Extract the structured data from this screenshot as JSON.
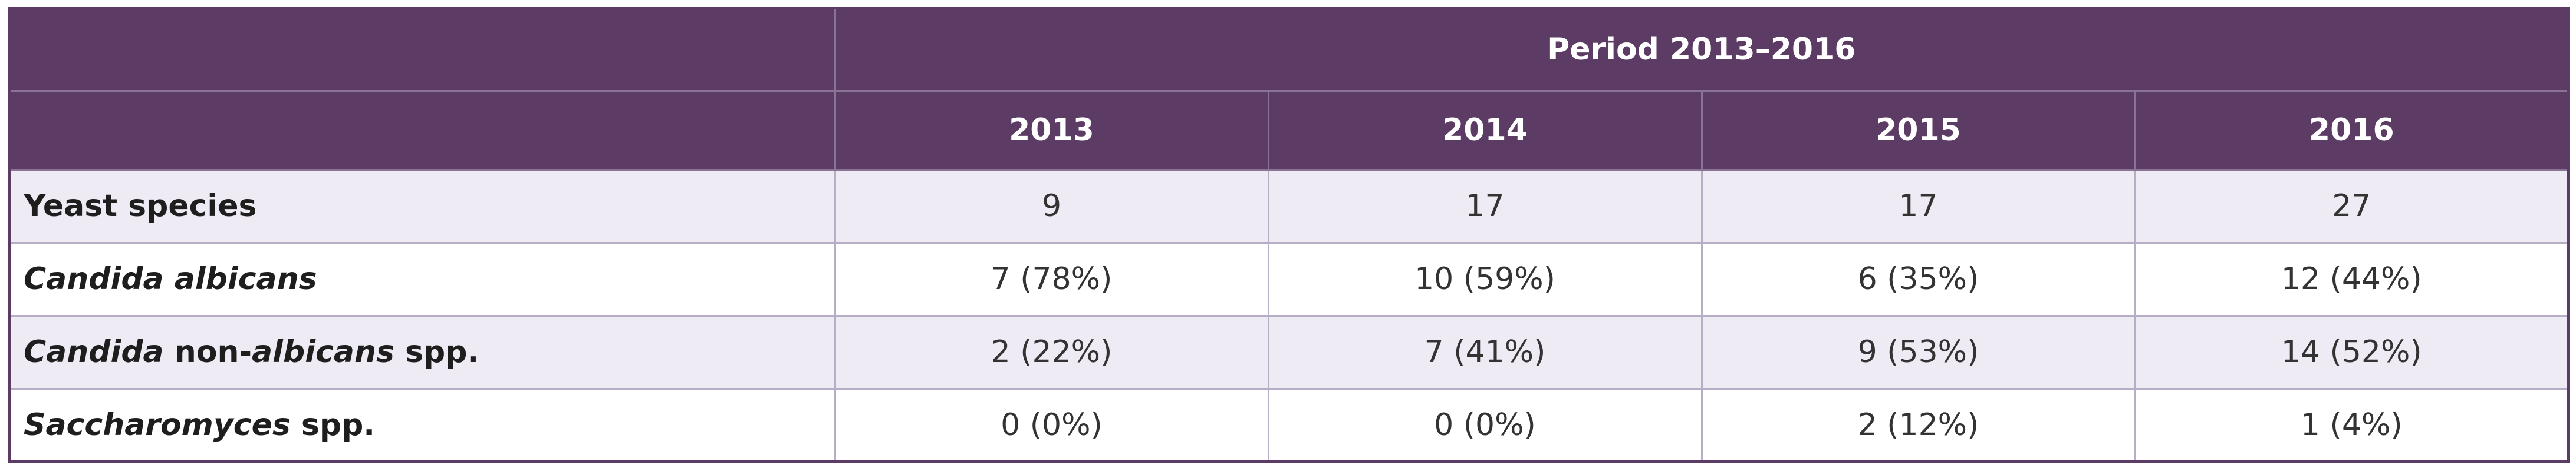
{
  "table": {
    "period_header": "Period 2013–2016",
    "years": [
      "2013",
      "2014",
      "2015",
      "2016"
    ],
    "rows": [
      {
        "label_parts": [
          {
            "text": "Yeast species",
            "italic": false
          }
        ],
        "values": [
          "9",
          "17",
          "17",
          "27"
        ]
      },
      {
        "label_parts": [
          {
            "text": "Candida albicans",
            "italic": true
          }
        ],
        "values": [
          "7 (78%)",
          "10 (59%)",
          "6 (35%)",
          "12 (44%)"
        ]
      },
      {
        "label_parts": [
          {
            "text": "Candida",
            "italic": true
          },
          {
            "text": " non-",
            "italic": false
          },
          {
            "text": "albicans",
            "italic": true
          },
          {
            "text": " spp.",
            "italic": false
          }
        ],
        "values": [
          "2 (22%)",
          "7 (41%)",
          "9 (53%)",
          "14 (52%)"
        ]
      },
      {
        "label_parts": [
          {
            "text": "Saccharomyces",
            "italic": true
          },
          {
            "text": " spp.",
            "italic": false
          }
        ],
        "values": [
          "0 (0%)",
          "0 (0%)",
          "2 (12%)",
          "1 (4%)"
        ]
      }
    ],
    "colors": {
      "header_bg": "#5c3b64",
      "header_text": "#ffffff",
      "stripe_bg": "#eeebf4",
      "grid_line": "#b7adc4"
    }
  }
}
